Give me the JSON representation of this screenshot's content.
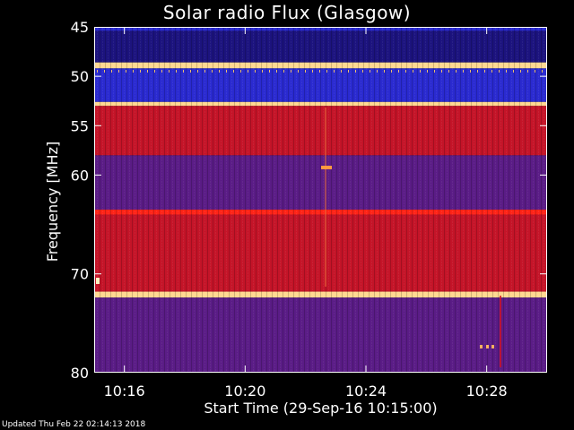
{
  "chart_data": {
    "type": "heatmap",
    "title": "Solar radio Flux (Glasgow)",
    "ylabel": "Frequency [MHz]",
    "xlabel": "Start Time (29-Sep-16 10:15:00)",
    "x_ticks": [
      "10:16",
      "10:20",
      "10:24",
      "10:28"
    ],
    "y_ticks": [
      45,
      50,
      55,
      60,
      70,
      80
    ],
    "ylim": [
      80,
      45
    ],
    "xlim": [
      "10:15:00",
      "10:30:00"
    ],
    "colormap": [
      "#1a0f7a",
      "#2b2bc8",
      "#5a1a8a",
      "#c8102a",
      "#ff2a10",
      "#ffd080"
    ],
    "bands": [
      {
        "freq_from": 45.0,
        "freq_to": 45.4,
        "level": "blue"
      },
      {
        "freq_from": 45.4,
        "freq_to": 48.6,
        "level": "navy"
      },
      {
        "freq_from": 48.6,
        "freq_to": 49.2,
        "level": "hot"
      },
      {
        "freq_from": 49.2,
        "freq_to": 52.6,
        "level": "blue"
      },
      {
        "freq_from": 52.6,
        "freq_to": 53.0,
        "level": "hot"
      },
      {
        "freq_from": 53.0,
        "freq_to": 58.0,
        "level": "red"
      },
      {
        "freq_from": 58.0,
        "freq_to": 63.5,
        "level": "purple"
      },
      {
        "freq_from": 63.5,
        "freq_to": 64.0,
        "level": "brightred"
      },
      {
        "freq_from": 64.0,
        "freq_to": 71.8,
        "level": "red"
      },
      {
        "freq_from": 71.8,
        "freq_to": 72.4,
        "level": "hot"
      },
      {
        "freq_from": 72.4,
        "freq_to": 80.0,
        "level": "purple"
      }
    ]
  },
  "footer": "Updated Thu Feb 22 02:14:13 2018"
}
